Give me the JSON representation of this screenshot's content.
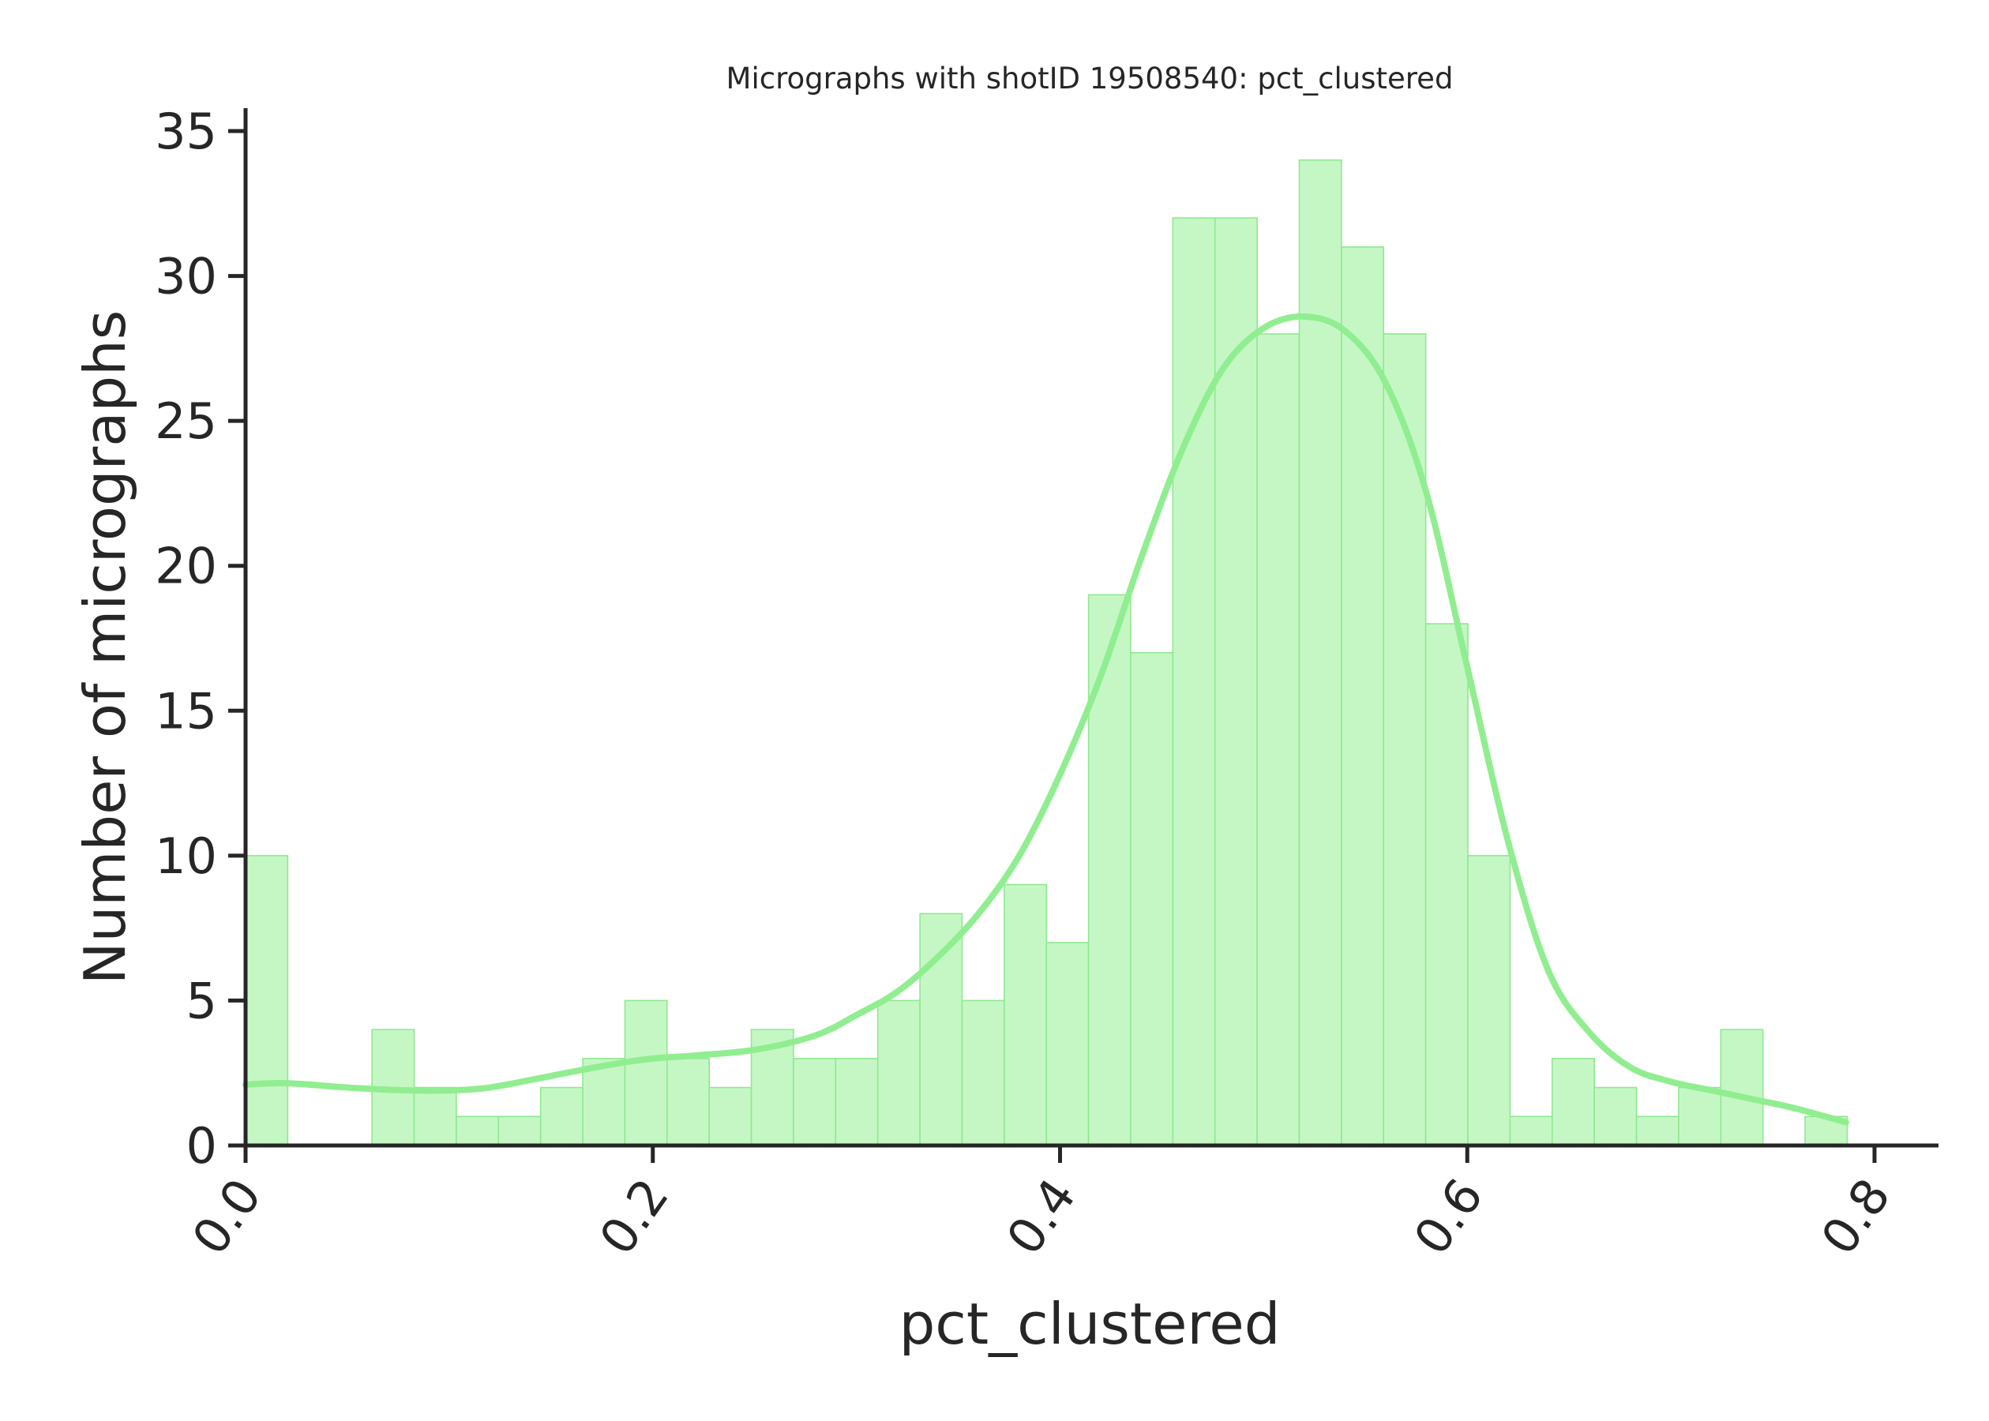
{
  "chart_data": {
    "type": "bar",
    "title": "Micrographs with shotID 19508540: pct_clustered",
    "xlabel": "pct_clustered",
    "ylabel": "Number of micrographs",
    "xlim": [
      0.0,
      0.83
    ],
    "ylim": [
      0,
      35.8
    ],
    "grid": false,
    "legend": "none",
    "bin_start": 0.0,
    "bin_width": 0.0207,
    "counts": [
      10,
      0,
      0,
      4,
      2,
      1,
      1,
      2,
      3,
      5,
      3,
      2,
      4,
      3,
      3,
      5,
      8,
      5,
      9,
      7,
      19,
      17,
      32,
      32,
      28,
      34,
      31,
      28,
      18,
      10,
      1,
      3,
      2,
      1,
      2,
      4,
      0,
      1
    ],
    "x_ticks": [
      {
        "value": 0.0,
        "label": "0.0"
      },
      {
        "value": 0.2,
        "label": "0.2"
      },
      {
        "value": 0.4,
        "label": "0.4"
      },
      {
        "value": 0.6,
        "label": "0.6"
      },
      {
        "value": 0.8,
        "label": "0.8"
      }
    ],
    "y_ticks": [
      {
        "value": 0,
        "label": "0"
      },
      {
        "value": 5,
        "label": "5"
      },
      {
        "value": 10,
        "label": "10"
      },
      {
        "value": 15,
        "label": "15"
      },
      {
        "value": 20,
        "label": "20"
      },
      {
        "value": 25,
        "label": "25"
      },
      {
        "value": 30,
        "label": "30"
      },
      {
        "value": 35,
        "label": "35"
      }
    ],
    "kde": {
      "x": [
        0.0,
        0.02,
        0.05,
        0.08,
        0.1,
        0.12,
        0.15,
        0.18,
        0.2,
        0.22,
        0.25,
        0.28,
        0.3,
        0.32,
        0.34,
        0.36,
        0.38,
        0.4,
        0.42,
        0.44,
        0.46,
        0.48,
        0.5,
        0.52,
        0.54,
        0.56,
        0.58,
        0.6,
        0.62,
        0.64,
        0.66,
        0.68,
        0.7,
        0.72,
        0.74,
        0.76,
        0.786
      ],
      "y": [
        2.1,
        2.15,
        2.0,
        1.9,
        1.9,
        2.0,
        2.4,
        2.8,
        3.0,
        3.1,
        3.3,
        3.8,
        4.5,
        5.3,
        6.5,
        8.0,
        10.0,
        12.8,
        16.2,
        20.3,
        24.0,
        26.8,
        28.2,
        28.6,
        28.1,
        26.3,
        22.5,
        16.5,
        10.5,
        6.0,
        3.9,
        2.7,
        2.2,
        1.9,
        1.6,
        1.3,
        0.8
      ],
      "color": "#90ee90"
    },
    "bar_fill": "#c5f7c5",
    "bar_edge": "#90e890"
  }
}
